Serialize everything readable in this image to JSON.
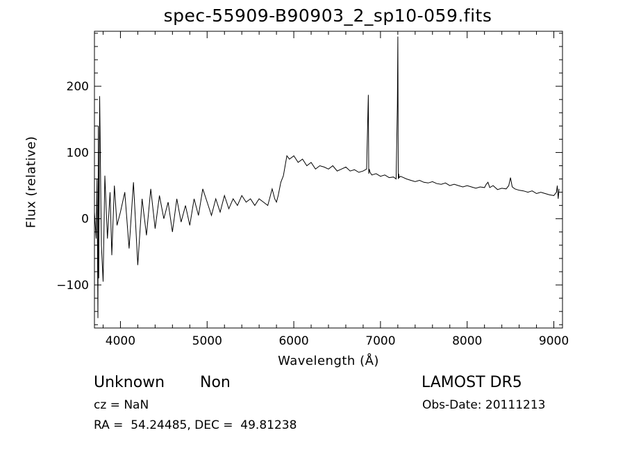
{
  "chart_data": {
    "type": "line",
    "title": "spec-55909-B90903_2_sp10-059.fits",
    "xlabel": "Wavelength (Å)",
    "ylabel": "Flux (relative)",
    "xlim": [
      3700,
      9100
    ],
    "ylim": [
      -165,
      283
    ],
    "x_ticks": [
      4000,
      5000,
      6000,
      7000,
      8000,
      9000
    ],
    "x_tick_labels": [
      "4000",
      "5000",
      "6000",
      "7000",
      "8000",
      "9000"
    ],
    "y_ticks": [
      -100,
      0,
      100,
      200
    ],
    "y_tick_labels": [
      "−100",
      "0",
      "100",
      "200"
    ],
    "grid": false,
    "series": [
      {
        "color": "#000000",
        "x": [
          3700,
          3720,
          3730,
          3740,
          3745,
          3750,
          3760,
          3780,
          3800,
          3820,
          3850,
          3880,
          3900,
          3930,
          3960,
          4000,
          4050,
          4100,
          4150,
          4200,
          4250,
          4300,
          4350,
          4400,
          4450,
          4500,
          4550,
          4600,
          4650,
          4700,
          4750,
          4800,
          4850,
          4900,
          4950,
          5000,
          5050,
          5100,
          5150,
          5200,
          5250,
          5300,
          5350,
          5400,
          5450,
          5500,
          5550,
          5600,
          5650,
          5700,
          5750,
          5780,
          5800,
          5820,
          5850,
          5880,
          5900,
          5920,
          5950,
          6000,
          6050,
          6100,
          6150,
          6200,
          6250,
          6300,
          6350,
          6400,
          6450,
          6500,
          6550,
          6600,
          6650,
          6700,
          6750,
          6800,
          6840,
          6860,
          6865,
          6870,
          6880,
          6900,
          6950,
          7000,
          7050,
          7100,
          7150,
          7180,
          7195,
          7200,
          7205,
          7210,
          7215,
          7230,
          7250,
          7300,
          7350,
          7400,
          7450,
          7500,
          7550,
          7600,
          7650,
          7700,
          7750,
          7800,
          7850,
          7900,
          7950,
          8000,
          8050,
          8100,
          8150,
          8200,
          8220,
          8240,
          8260,
          8300,
          8350,
          8400,
          8450,
          8480,
          8500,
          8520,
          8550,
          8600,
          8650,
          8700,
          8750,
          8800,
          8850,
          8900,
          8950,
          9000,
          9030,
          9040,
          9050,
          9060
        ],
        "y": [
          10,
          -30,
          60,
          -150,
          140,
          -90,
          185,
          -40,
          -95,
          65,
          -30,
          40,
          -55,
          50,
          -10,
          10,
          40,
          -45,
          55,
          -70,
          30,
          -25,
          45,
          -15,
          35,
          0,
          25,
          -20,
          30,
          -5,
          20,
          -10,
          30,
          5,
          45,
          25,
          5,
          30,
          10,
          35,
          15,
          30,
          20,
          35,
          25,
          30,
          20,
          30,
          25,
          20,
          45,
          30,
          25,
          35,
          55,
          65,
          80,
          95,
          90,
          95,
          85,
          90,
          80,
          85,
          75,
          80,
          78,
          75,
          80,
          72,
          75,
          78,
          72,
          74,
          70,
          72,
          75,
          187,
          68,
          75,
          70,
          66,
          68,
          64,
          66,
          62,
          63,
          60,
          170,
          275,
          60,
          68,
          62,
          64,
          63,
          60,
          58,
          56,
          58,
          55,
          54,
          56,
          53,
          52,
          54,
          50,
          52,
          50,
          48,
          50,
          48,
          46,
          48,
          47,
          52,
          55,
          47,
          50,
          44,
          46,
          45,
          50,
          62,
          48,
          45,
          43,
          42,
          40,
          42,
          38,
          40,
          38,
          36,
          35,
          40,
          50,
          30,
          45
        ]
      }
    ]
  },
  "info": {
    "obj_class": "Unknown",
    "obj_subclass": "Non",
    "survey": "LAMOST DR5",
    "cz": "cz = NaN",
    "obs_date": "Obs-Date: 20111213",
    "radec": "RA =  54.24485, DEC =  49.81238"
  }
}
